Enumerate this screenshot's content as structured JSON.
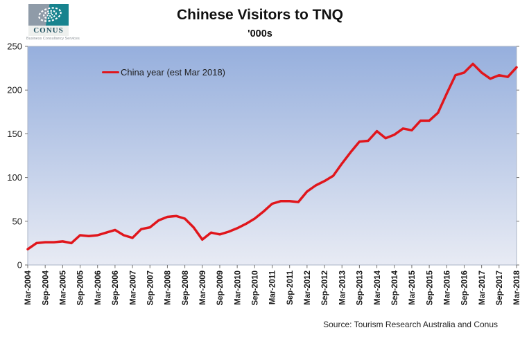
{
  "logo": {
    "name": "CONUS",
    "caption": "Business Consultancy Services"
  },
  "header": {
    "title": "Chinese Visitors to TNQ",
    "subtitle": "'000s"
  },
  "source_note": "Source: Tourism Research Australia and Conus",
  "chart_data": {
    "type": "line",
    "title": "Chinese Visitors to TNQ",
    "subtitle": "'000s",
    "ylabel": "",
    "xlabel": "",
    "ylim": [
      0,
      250
    ],
    "yticks": [
      0,
      50,
      100,
      150,
      200,
      250
    ],
    "grid": false,
    "legend_position": "inside-top-left",
    "plot_background": {
      "top": "#96afdd",
      "bottom": "#e8ebf4"
    },
    "axis_color": "#a8b3c6",
    "tick_color": "#6f6f6f",
    "x": [
      "Mar-2004",
      "Jun-2004",
      "Sep-2004",
      "Dec-2004",
      "Mar-2005",
      "Jun-2005",
      "Sep-2005",
      "Dec-2005",
      "Mar-2006",
      "Jun-2006",
      "Sep-2006",
      "Dec-2006",
      "Mar-2007",
      "Jun-2007",
      "Sep-2007",
      "Dec-2007",
      "Mar-2008",
      "Jun-2008",
      "Sep-2008",
      "Dec-2008",
      "Mar-2009",
      "Jun-2009",
      "Sep-2009",
      "Dec-2009",
      "Mar-2010",
      "Jun-2010",
      "Sep-2010",
      "Dec-2010",
      "Mar-2011",
      "Jun-2011",
      "Sep-2011",
      "Dec-2011",
      "Mar-2012",
      "Jun-2012",
      "Sep-2012",
      "Dec-2012",
      "Mar-2013",
      "Jun-2013",
      "Sep-2013",
      "Dec-2013",
      "Mar-2014",
      "Jun-2014",
      "Sep-2014",
      "Dec-2014",
      "Mar-2015",
      "Jun-2015",
      "Sep-2015",
      "Dec-2015",
      "Mar-2016",
      "Jun-2016",
      "Sep-2016",
      "Dec-2016",
      "Mar-2017",
      "Jun-2017",
      "Sep-2017",
      "Dec-2017",
      "Mar-2018"
    ],
    "x_tick_labels": [
      "Mar-2004",
      "Sep-2004",
      "Mar-2005",
      "Sep-2005",
      "Mar-2006",
      "Sep-2006",
      "Mar-2007",
      "Sep-2007",
      "Mar-2008",
      "Sep-2008",
      "Mar-2009",
      "Sep-2009",
      "Mar-2010",
      "Sep-2010",
      "Mar-2011",
      "Sep-2011",
      "Mar-2012",
      "Sep-2012",
      "Mar-2013",
      "Sep-2013",
      "Mar-2014",
      "Sep-2014",
      "Mar-2015",
      "Sep-2015",
      "Mar-2016",
      "Sep-2016",
      "Mar-2017",
      "Sep-2017",
      "Mar-2018"
    ],
    "series": [
      {
        "name": "China year (est Mar 2018)",
        "color": "#e0161c",
        "values": [
          18,
          25,
          26,
          26,
          27,
          25,
          34,
          33,
          34,
          37,
          40,
          34,
          31,
          41,
          43,
          51,
          55,
          56,
          53,
          43,
          29,
          37,
          35,
          38,
          42,
          47,
          53,
          61,
          70,
          73,
          73,
          72,
          84,
          91,
          96,
          102,
          116,
          129,
          141,
          142,
          153,
          145,
          149,
          156,
          154,
          165,
          165,
          174,
          196,
          217,
          220,
          230,
          220,
          213,
          217,
          215,
          226
        ]
      }
    ]
  }
}
